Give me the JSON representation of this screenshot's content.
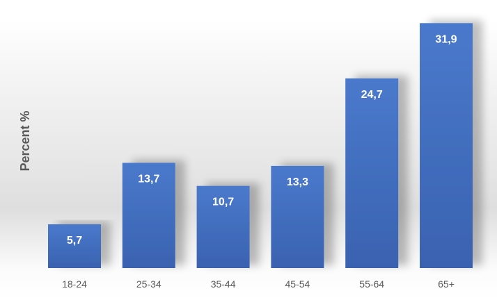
{
  "chart_data": {
    "type": "bar",
    "title": "",
    "xlabel": "",
    "ylabel": "Percent %",
    "categories": [
      "18-24",
      "25-34",
      "35-44",
      "45-54",
      "55-64",
      "65+"
    ],
    "values": [
      5.7,
      13.7,
      10.7,
      13.3,
      24.7,
      31.9
    ],
    "data_labels": [
      "5,7",
      "13,7",
      "10,7",
      "13,3",
      "24,7",
      "31,9"
    ],
    "ylim": [
      0,
      33.1
    ],
    "grid": false,
    "legend": "none",
    "bar_color": "#4472C4"
  }
}
